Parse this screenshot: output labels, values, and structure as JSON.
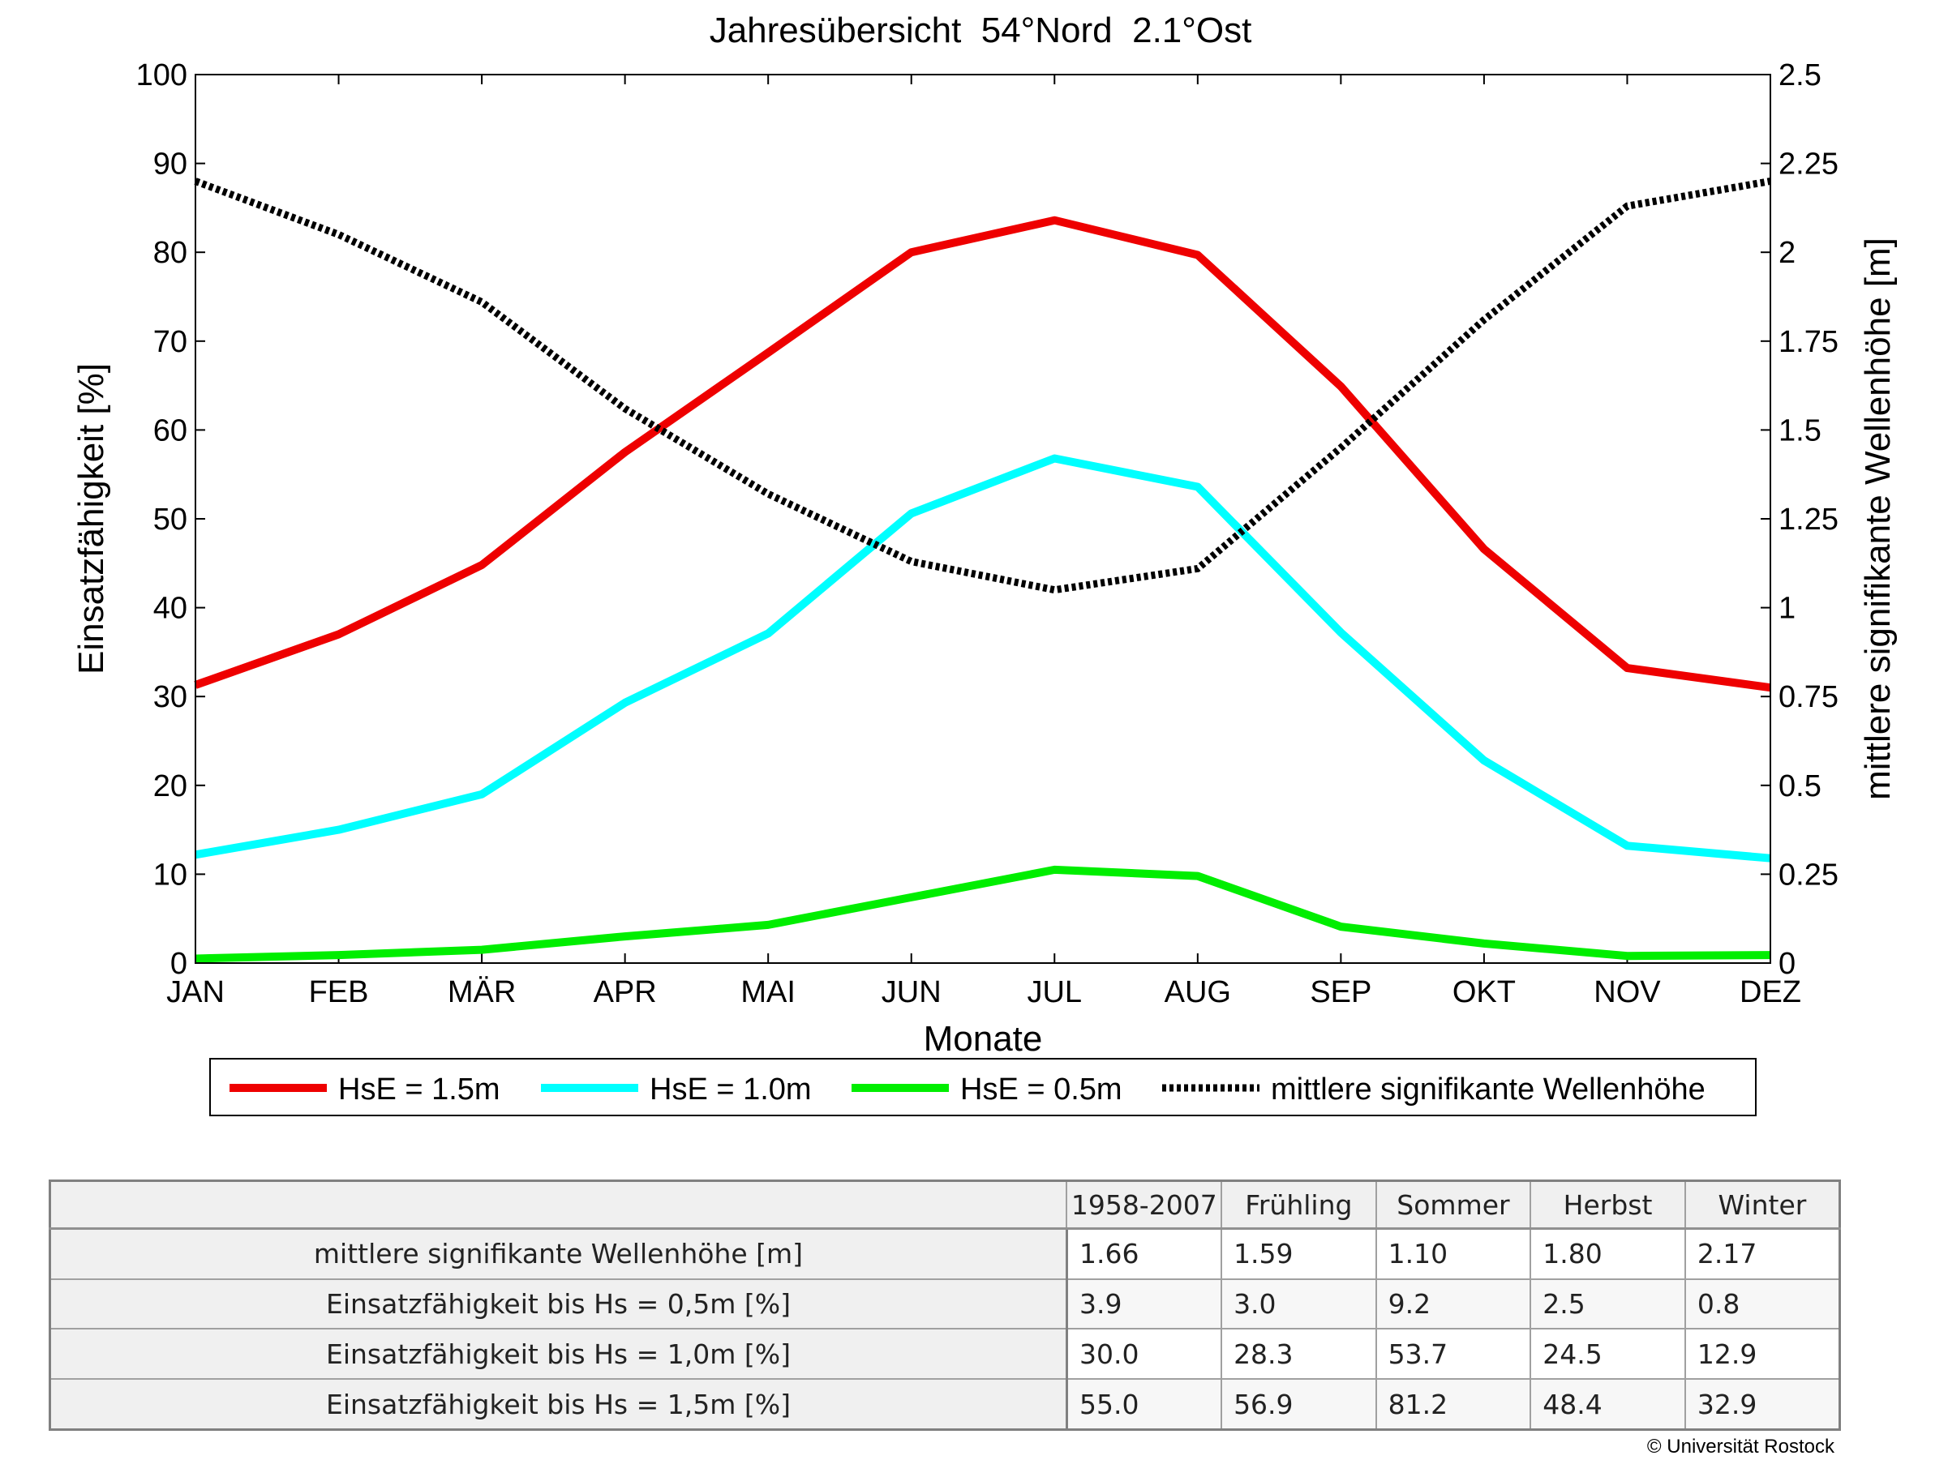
{
  "chart_data": {
    "type": "line",
    "title": "Jahresübersicht  54°Nord  2.1°Ost",
    "xlabel": "Monate",
    "ylabel": "Einsatzfähigkeit [%]",
    "y2label": "mittlere signifikante Wellenhöhe [m]",
    "categories": [
      "JAN",
      "FEB",
      "MÄR",
      "APR",
      "MAI",
      "JUN",
      "JUL",
      "AUG",
      "SEP",
      "OKT",
      "NOV",
      "DEZ"
    ],
    "ylim": [
      0,
      100
    ],
    "y2lim": [
      0,
      2.5
    ],
    "yticks": [
      "0",
      "10",
      "20",
      "30",
      "40",
      "50",
      "60",
      "70",
      "80",
      "90",
      "100"
    ],
    "y2ticks": [
      "0",
      "0.25",
      "0.5",
      "0.75",
      "1",
      "1.25",
      "1.5",
      "1.75",
      "2",
      "2.25",
      "2.5"
    ],
    "grid": false,
    "legend_position": "bottom",
    "series": [
      {
        "name": "HsE = 1.5m",
        "axis": "left",
        "color": "#ee0000",
        "style": "solid",
        "values": [
          31.3,
          37,
          44.8,
          57.5,
          68.7,
          80,
          83.6,
          79.7,
          64.9,
          46.6,
          33.2,
          31
        ]
      },
      {
        "name": "HsE = 1.0m",
        "axis": "left",
        "color": "#00ffff",
        "style": "solid",
        "values": [
          12.2,
          15,
          19,
          29.3,
          37.1,
          50.6,
          56.8,
          53.6,
          37.2,
          22.8,
          13.2,
          11.8
        ]
      },
      {
        "name": "HsE = 0.5m",
        "axis": "left",
        "color": "#00ee00",
        "style": "solid",
        "values": [
          0.5,
          0.9,
          1.5,
          3,
          4.3,
          7.4,
          10.5,
          9.8,
          4.1,
          2.2,
          0.8,
          0.9
        ]
      },
      {
        "name": "mittlere signifikante Wellenhöhe",
        "axis": "right",
        "color": "#000000",
        "style": "dotted",
        "values": [
          2.2,
          2.05,
          1.86,
          1.56,
          1.32,
          1.13,
          1.05,
          1.11,
          1.45,
          1.81,
          2.13,
          2.2
        ]
      }
    ]
  },
  "table": {
    "headers": [
      "",
      "1958-2007",
      "Frühling",
      "Sommer",
      "Herbst",
      "Winter"
    ],
    "rows": [
      {
        "label": "mittlere signifikante Wellenhöhe [m]",
        "values": [
          "1.66",
          "1.59",
          "1.10",
          "1.80",
          "2.17"
        ]
      },
      {
        "label": "Einsatzfähigkeit bis Hs = 0,5m [%]",
        "values": [
          "3.9",
          "3.0",
          "9.2",
          "2.5",
          "0.8"
        ]
      },
      {
        "label": "Einsatzfähigkeit bis Hs = 1,0m [%]",
        "values": [
          "30.0",
          "28.3",
          "53.7",
          "24.5",
          "12.9"
        ]
      },
      {
        "label": "Einsatzfähigkeit bis Hs = 1,5m [%]",
        "values": [
          "55.0",
          "56.9",
          "81.2",
          "48.4",
          "32.9"
        ]
      }
    ]
  },
  "copyright": "© Universität Rostock"
}
